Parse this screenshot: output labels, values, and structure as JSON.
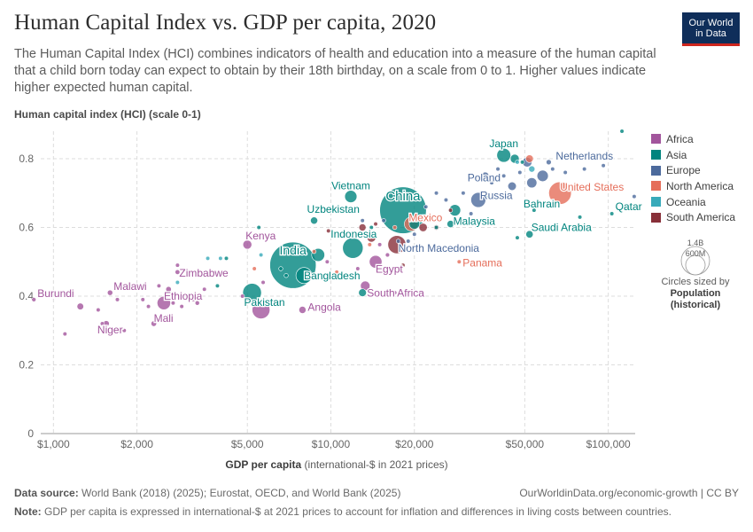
{
  "header": {
    "title": "Human Capital Index vs. GDP per capita, 2020",
    "subtitle": "The Human Capital Index (HCI) combines indicators of health and education into a measure of the human capital that a child born today can expect to obtain by their 18th birthday, on a scale from 0 to 1. Higher values indicate higher expected human capital."
  },
  "logo": {
    "line1": "Our World",
    "line2": "in Data"
  },
  "legend": {
    "items": [
      {
        "label": "Africa",
        "color": "#a2559c"
      },
      {
        "label": "Asia",
        "color": "#00847e"
      },
      {
        "label": "Europe",
        "color": "#4c6a9c"
      },
      {
        "label": "North America",
        "color": "#e56e5a"
      },
      {
        "label": "Oceania",
        "color": "#38aaba"
      },
      {
        "label": "South America",
        "color": "#883039"
      }
    ],
    "size_values": {
      "large": "1.4B",
      "small": "600M"
    },
    "size_caption": "Circles sized by",
    "size_variable_line1": "Population",
    "size_variable_line2": "(historical)"
  },
  "footer": {
    "source_label": "Data source:",
    "source_text": "World Bank (2018) (2025); Eurostat, OECD, and World Bank (2025)",
    "url": "OurWorldinData.org/economic-growth | CC BY",
    "note_label": "Note:",
    "note_text": "GDP per capita is expressed in international-$ at 2021 prices to account for inflation and differences in living costs between countries."
  },
  "chart_data": {
    "type": "scatter",
    "title": "Human Capital Index vs. GDP per capita, 2020",
    "ylabel": "Human capital index (HCI) (scale 0-1)",
    "xlabel_bold": "GDP per capita",
    "xlabel_rest": "(international-$ in 2021 prices)",
    "xscale": "log",
    "xlim": [
      900,
      125000
    ],
    "ylim": [
      0,
      0.88
    ],
    "xticks": [
      {
        "value": 1000,
        "label": "$1,000"
      },
      {
        "value": 2000,
        "label": "$2,000"
      },
      {
        "value": 5000,
        "label": "$5,000"
      },
      {
        "value": 10000,
        "label": "$10,000"
      },
      {
        "value": 20000,
        "label": "$20,000"
      },
      {
        "value": 50000,
        "label": "$50,000"
      },
      {
        "value": 100000,
        "label": "$100,000"
      }
    ],
    "yticks": [
      {
        "value": 0,
        "label": "0"
      },
      {
        "value": 0.2,
        "label": "0.2"
      },
      {
        "value": 0.4,
        "label": "0.4"
      },
      {
        "value": 0.6,
        "label": "0.6"
      },
      {
        "value": 0.8,
        "label": "0.8"
      }
    ],
    "grid": true,
    "legend_position": "right",
    "labeled_points": [
      {
        "name": "China",
        "continent": "Asia",
        "gdp": 18200,
        "hci": 0.65,
        "pop": 1410
      },
      {
        "name": "India",
        "continent": "Asia",
        "gdp": 7300,
        "hci": 0.49,
        "pop": 1390
      },
      {
        "name": "Indonesia",
        "continent": "Asia",
        "gdp": 12000,
        "hci": 0.54,
        "pop": 272
      },
      {
        "name": "Bangladesh",
        "continent": "Asia",
        "gdp": 8000,
        "hci": 0.46,
        "pop": 167
      },
      {
        "name": "Pakistan",
        "continent": "Asia",
        "gdp": 5200,
        "hci": 0.41,
        "pop": 227
      },
      {
        "name": "Japan",
        "continent": "Asia",
        "gdp": 42000,
        "hci": 0.81,
        "pop": 126
      },
      {
        "name": "Vietnam",
        "continent": "Asia",
        "gdp": 11800,
        "hci": 0.69,
        "pop": 97
      },
      {
        "name": "Uzbekistan",
        "continent": "Asia",
        "gdp": 8700,
        "hci": 0.62,
        "pop": 34
      },
      {
        "name": "Malaysia",
        "continent": "Asia",
        "gdp": 27000,
        "hci": 0.61,
        "pop": 33
      },
      {
        "name": "Saudi Arabia",
        "continent": "Asia",
        "gdp": 52000,
        "hci": 0.58,
        "pop": 35
      },
      {
        "name": "Bahrain",
        "continent": "Asia",
        "gdp": 54000,
        "hci": 0.65,
        "pop": 1.7
      },
      {
        "name": "Qatar",
        "continent": "Asia",
        "gdp": 103000,
        "hci": 0.64,
        "pop": 2.8
      },
      {
        "name": "Netherlands",
        "continent": "Europe",
        "gdp": 61000,
        "hci": 0.79,
        "pop": 17.4
      },
      {
        "name": "Poland",
        "continent": "Europe",
        "gdp": 36000,
        "hci": 0.75,
        "pop": 38
      },
      {
        "name": "Russia",
        "continent": "Europe",
        "gdp": 34000,
        "hci": 0.68,
        "pop": 144
      },
      {
        "name": "North Macedonia",
        "continent": "Europe",
        "gdp": 17500,
        "hci": 0.56,
        "pop": 2
      },
      {
        "name": "United States",
        "continent": "North America",
        "gdp": 67000,
        "hci": 0.7,
        "pop": 331
      },
      {
        "name": "Mexico",
        "continent": "North America",
        "gdp": 19500,
        "hci": 0.61,
        "pop": 128
      },
      {
        "name": "Panama",
        "continent": "North America",
        "gdp": 29000,
        "hci": 0.5,
        "pop": 4.3
      },
      {
        "name": "Kenya",
        "continent": "Africa",
        "gdp": 5000,
        "hci": 0.55,
        "pop": 52
      },
      {
        "name": "Egypt",
        "continent": "Africa",
        "gdp": 14500,
        "hci": 0.5,
        "pop": 104
      },
      {
        "name": "South Africa",
        "continent": "Africa",
        "gdp": 13300,
        "hci": 0.43,
        "pop": 59
      },
      {
        "name": "Angola",
        "continent": "Africa",
        "gdp": 7900,
        "hci": 0.36,
        "pop": 33
      },
      {
        "name": "Zimbabwe",
        "continent": "Africa",
        "gdp": 2800,
        "hci": 0.47,
        "pop": 15
      },
      {
        "name": "Ethiopia",
        "continent": "Africa",
        "gdp": 2500,
        "hci": 0.38,
        "pop": 117
      },
      {
        "name": "Malawi",
        "continent": "Africa",
        "gdp": 1600,
        "hci": 0.41,
        "pop": 19
      },
      {
        "name": "Burundi",
        "continent": "Africa",
        "gdp": 850,
        "hci": 0.39,
        "pop": 12
      },
      {
        "name": "Niger",
        "continent": "Africa",
        "gdp": 1550,
        "hci": 0.32,
        "pop": 24
      },
      {
        "name": "Mali",
        "continent": "Africa",
        "gdp": 2300,
        "hci": 0.32,
        "pop": 20
      }
    ],
    "other_points": [
      {
        "continent": "Africa",
        "gdp": 1100,
        "hci": 0.29,
        "pop": 5
      },
      {
        "continent": "Africa",
        "gdp": 1250,
        "hci": 0.37,
        "pop": 29
      },
      {
        "continent": "Africa",
        "gdp": 1450,
        "hci": 0.36,
        "pop": 5
      },
      {
        "continent": "Africa",
        "gdp": 1500,
        "hci": 0.32,
        "pop": 4
      },
      {
        "continent": "Africa",
        "gdp": 1800,
        "hci": 0.3,
        "pop": 5
      },
      {
        "continent": "Africa",
        "gdp": 1700,
        "hci": 0.39,
        "pop": 6
      },
      {
        "continent": "Africa",
        "gdp": 2100,
        "hci": 0.39,
        "pop": 5
      },
      {
        "continent": "Africa",
        "gdp": 2400,
        "hci": 0.43,
        "pop": 5
      },
      {
        "continent": "Africa",
        "gdp": 2700,
        "hci": 0.38,
        "pop": 10
      },
      {
        "continent": "Africa",
        "gdp": 2900,
        "hci": 0.37,
        "pop": 8
      },
      {
        "continent": "Africa",
        "gdp": 2600,
        "hci": 0.34,
        "pop": 5
      },
      {
        "continent": "Africa",
        "gdp": 3300,
        "hci": 0.38,
        "pop": 13
      },
      {
        "continent": "Africa",
        "gdp": 3500,
        "hci": 0.42,
        "pop": 5
      },
      {
        "continent": "Africa",
        "gdp": 2600,
        "hci": 0.42,
        "pop": 20
      },
      {
        "continent": "Africa",
        "gdp": 2800,
        "hci": 0.49,
        "pop": 5
      },
      {
        "continent": "Africa",
        "gdp": 4800,
        "hci": 0.4,
        "pop": 5
      },
      {
        "continent": "Africa",
        "gdp": 5600,
        "hci": 0.36,
        "pop": 206
      },
      {
        "continent": "Africa",
        "gdp": 5900,
        "hci": 0.38,
        "pop": 5
      },
      {
        "continent": "Africa",
        "gdp": 5700,
        "hci": 0.44,
        "pop": 5
      },
      {
        "continent": "Africa",
        "gdp": 9700,
        "hci": 0.5,
        "pop": 10
      },
      {
        "continent": "Africa",
        "gdp": 12500,
        "hci": 0.48,
        "pop": 5
      },
      {
        "continent": "Africa",
        "gdp": 15000,
        "hci": 0.55,
        "pop": 5
      },
      {
        "continent": "Africa",
        "gdp": 17000,
        "hci": 0.41,
        "pop": 5
      },
      {
        "continent": "Africa",
        "gdp": 16000,
        "hci": 0.52,
        "pop": 12
      },
      {
        "continent": "Africa",
        "gdp": 2200,
        "hci": 0.37,
        "pop": 5
      },
      {
        "continent": "Africa",
        "gdp": 3200,
        "hci": 0.39,
        "pop": 5
      },
      {
        "continent": "Asia",
        "gdp": 6600,
        "hci": 0.48,
        "pop": 6
      },
      {
        "continent": "Asia",
        "gdp": 4200,
        "hci": 0.51,
        "pop": 5
      },
      {
        "continent": "Asia",
        "gdp": 3900,
        "hci": 0.43,
        "pop": 5
      },
      {
        "continent": "Asia",
        "gdp": 5500,
        "hci": 0.6,
        "pop": 5
      },
      {
        "continent": "Asia",
        "gdp": 9000,
        "hci": 0.52,
        "pop": 110
      },
      {
        "continent": "Asia",
        "gdp": 6900,
        "hci": 0.46,
        "pop": 5
      },
      {
        "continent": "Asia",
        "gdp": 13000,
        "hci": 0.41,
        "pop": 40
      },
      {
        "continent": "Asia",
        "gdp": 14000,
        "hci": 0.6,
        "pop": 5
      },
      {
        "continent": "Asia",
        "gdp": 20000,
        "hci": 0.61,
        "pop": 70
      },
      {
        "continent": "Asia",
        "gdp": 24000,
        "hci": 0.6,
        "pop": 5
      },
      {
        "continent": "Asia",
        "gdp": 28000,
        "hci": 0.65,
        "pop": 85
      },
      {
        "continent": "Asia",
        "gdp": 46000,
        "hci": 0.8,
        "pop": 52
      },
      {
        "continent": "Asia",
        "gdp": 49000,
        "hci": 0.79,
        "pop": 5
      },
      {
        "continent": "Asia",
        "gdp": 47000,
        "hci": 0.57,
        "pop": 5
      },
      {
        "continent": "Asia",
        "gdp": 79000,
        "hci": 0.63,
        "pop": 5
      },
      {
        "continent": "Asia",
        "gdp": 37000,
        "hci": 0.69,
        "pop": 5
      },
      {
        "continent": "Asia",
        "gdp": 112000,
        "hci": 0.88,
        "pop": 5
      },
      {
        "continent": "Europe",
        "gdp": 13000,
        "hci": 0.62,
        "pop": 5
      },
      {
        "continent": "Europe",
        "gdp": 15500,
        "hci": 0.62,
        "pop": 5
      },
      {
        "continent": "Europe",
        "gdp": 20000,
        "hci": 0.58,
        "pop": 5
      },
      {
        "continent": "Europe",
        "gdp": 22000,
        "hci": 0.66,
        "pop": 5
      },
      {
        "continent": "Europe",
        "gdp": 24000,
        "hci": 0.7,
        "pop": 5
      },
      {
        "continent": "Europe",
        "gdp": 26000,
        "hci": 0.68,
        "pop": 5
      },
      {
        "continent": "Europe",
        "gdp": 30000,
        "hci": 0.7,
        "pop": 5
      },
      {
        "continent": "Europe",
        "gdp": 32000,
        "hci": 0.64,
        "pop": 5
      },
      {
        "continent": "Europe",
        "gdp": 38000,
        "hci": 0.73,
        "pop": 10
      },
      {
        "continent": "Europe",
        "gdp": 40000,
        "hci": 0.77,
        "pop": 5
      },
      {
        "continent": "Europe",
        "gdp": 42000,
        "hci": 0.75,
        "pop": 5
      },
      {
        "continent": "Europe",
        "gdp": 45000,
        "hci": 0.72,
        "pop": 47
      },
      {
        "continent": "Europe",
        "gdp": 48000,
        "hci": 0.76,
        "pop": 5
      },
      {
        "continent": "Europe",
        "gdp": 51000,
        "hci": 0.79,
        "pop": 60
      },
      {
        "continent": "Europe",
        "gdp": 53000,
        "hci": 0.73,
        "pop": 67
      },
      {
        "continent": "Europe",
        "gdp": 58000,
        "hci": 0.75,
        "pop": 83
      },
      {
        "continent": "Europe",
        "gdp": 63000,
        "hci": 0.77,
        "pop": 5
      },
      {
        "continent": "Europe",
        "gdp": 70000,
        "hci": 0.76,
        "pop": 5
      },
      {
        "continent": "Europe",
        "gdp": 82000,
        "hci": 0.77,
        "pop": 5
      },
      {
        "continent": "Europe",
        "gdp": 96000,
        "hci": 0.78,
        "pop": 5
      },
      {
        "continent": "Europe",
        "gdp": 124000,
        "hci": 0.69,
        "pop": 5
      },
      {
        "continent": "Europe",
        "gdp": 19000,
        "hci": 0.56,
        "pop": 5
      },
      {
        "continent": "North America",
        "gdp": 5300,
        "hci": 0.48,
        "pop": 5
      },
      {
        "continent": "North America",
        "gdp": 8700,
        "hci": 0.53,
        "pop": 5
      },
      {
        "continent": "North America",
        "gdp": 9500,
        "hci": 0.45,
        "pop": 5
      },
      {
        "continent": "North America",
        "gdp": 10500,
        "hci": 0.47,
        "pop": 5
      },
      {
        "continent": "North America",
        "gdp": 13800,
        "hci": 0.55,
        "pop": 5
      },
      {
        "continent": "North America",
        "gdp": 17000,
        "hci": 0.6,
        "pop": 11
      },
      {
        "continent": "North America",
        "gdp": 21500,
        "hci": 0.63,
        "pop": 5
      },
      {
        "continent": "North America",
        "gdp": 31000,
        "hci": 0.61,
        "pop": 5
      },
      {
        "continent": "North America",
        "gdp": 52000,
        "hci": 0.8,
        "pop": 38
      },
      {
        "continent": "Oceania",
        "gdp": 2800,
        "hci": 0.44,
        "pop": 5
      },
      {
        "continent": "Oceania",
        "gdp": 3600,
        "hci": 0.51,
        "pop": 5
      },
      {
        "continent": "Oceania",
        "gdp": 4000,
        "hci": 0.51,
        "pop": 5
      },
      {
        "continent": "Oceania",
        "gdp": 5300,
        "hci": 0.57,
        "pop": 5
      },
      {
        "continent": "Oceania",
        "gdp": 5600,
        "hci": 0.52,
        "pop": 5
      },
      {
        "continent": "Oceania",
        "gdp": 53000,
        "hci": 0.77,
        "pop": 25
      },
      {
        "continent": "Oceania",
        "gdp": 47000,
        "hci": 0.79,
        "pop": 5
      },
      {
        "continent": "South America",
        "gdp": 9800,
        "hci": 0.59,
        "pop": 5
      },
      {
        "continent": "South America",
        "gdp": 13000,
        "hci": 0.6,
        "pop": 33
      },
      {
        "continent": "South America",
        "gdp": 14000,
        "hci": 0.57,
        "pop": 50
      },
      {
        "continent": "South America",
        "gdp": 14500,
        "hci": 0.61,
        "pop": 5
      },
      {
        "continent": "South America",
        "gdp": 17300,
        "hci": 0.55,
        "pop": 212
      },
      {
        "continent": "South America",
        "gdp": 21500,
        "hci": 0.6,
        "pop": 45
      },
      {
        "continent": "South America",
        "gdp": 24000,
        "hci": 0.6,
        "pop": 19
      },
      {
        "continent": "South America",
        "gdp": 18200,
        "hci": 0.49,
        "pop": 5
      },
      {
        "continent": "South America",
        "gdp": 27000,
        "hci": 0.65,
        "pop": 5
      }
    ]
  }
}
